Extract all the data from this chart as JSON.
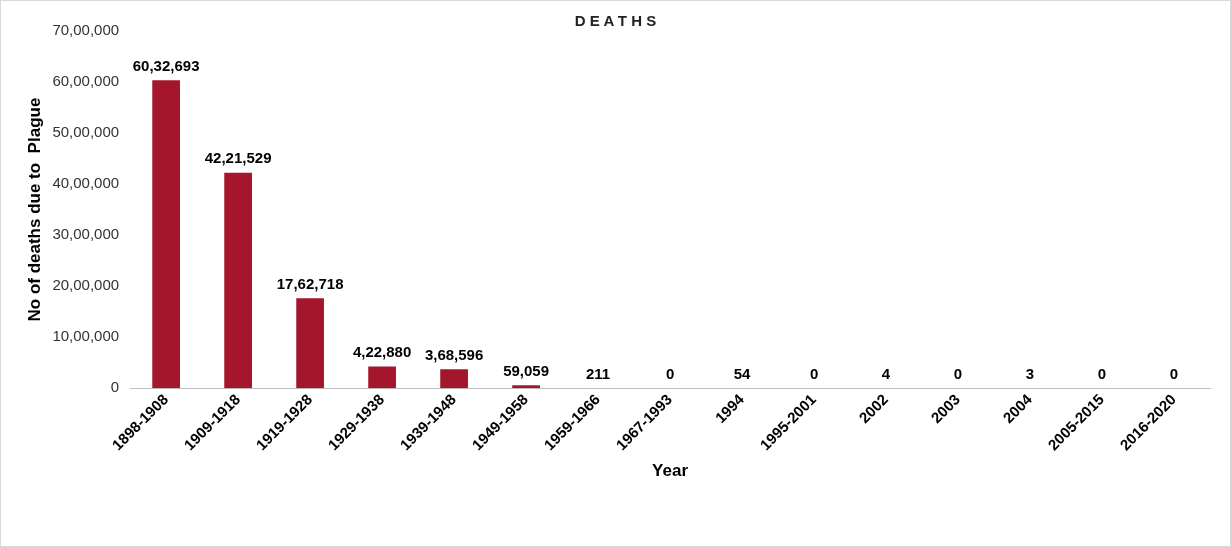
{
  "chart_data": {
    "type": "bar",
    "title": "D E A T H S",
    "xlabel": "Year",
    "ylabel": "No of deaths due to  Plague",
    "categories": [
      "1898-1908",
      "1909-1918",
      "1919-1928",
      "1929-1938",
      "1939-1948",
      "1949-1958",
      "1959-1966",
      "1967-1993",
      "1994",
      "1995-2001",
      "2002",
      "2003",
      "2004",
      "2005-2015",
      "2016-2020"
    ],
    "values": [
      6032693,
      4221529,
      1762718,
      422880,
      368596,
      59059,
      211,
      0,
      54,
      0,
      4,
      0,
      3,
      0,
      0
    ],
    "value_labels": [
      "60,32,693",
      "42,21,529",
      "17,62,718",
      "4,22,880",
      "3,68,596",
      "59,059",
      "211",
      "0",
      "54",
      "0",
      "4",
      "0",
      "3",
      "0",
      "0"
    ],
    "color": "#a3162c",
    "ylim": [
      0,
      7000000
    ],
    "yticks": [
      {
        "value": 0,
        "label": "0"
      },
      {
        "value": 1000000,
        "label": "10,00,000"
      },
      {
        "value": 2000000,
        "label": "20,00,000"
      },
      {
        "value": 3000000,
        "label": "30,00,000"
      },
      {
        "value": 4000000,
        "label": "40,00,000"
      },
      {
        "value": 5000000,
        "label": "50,00,000"
      },
      {
        "value": 6000000,
        "label": "60,00,000"
      },
      {
        "value": 7000000,
        "label": "70,00,000"
      }
    ],
    "grid": false,
    "legend": false
  }
}
